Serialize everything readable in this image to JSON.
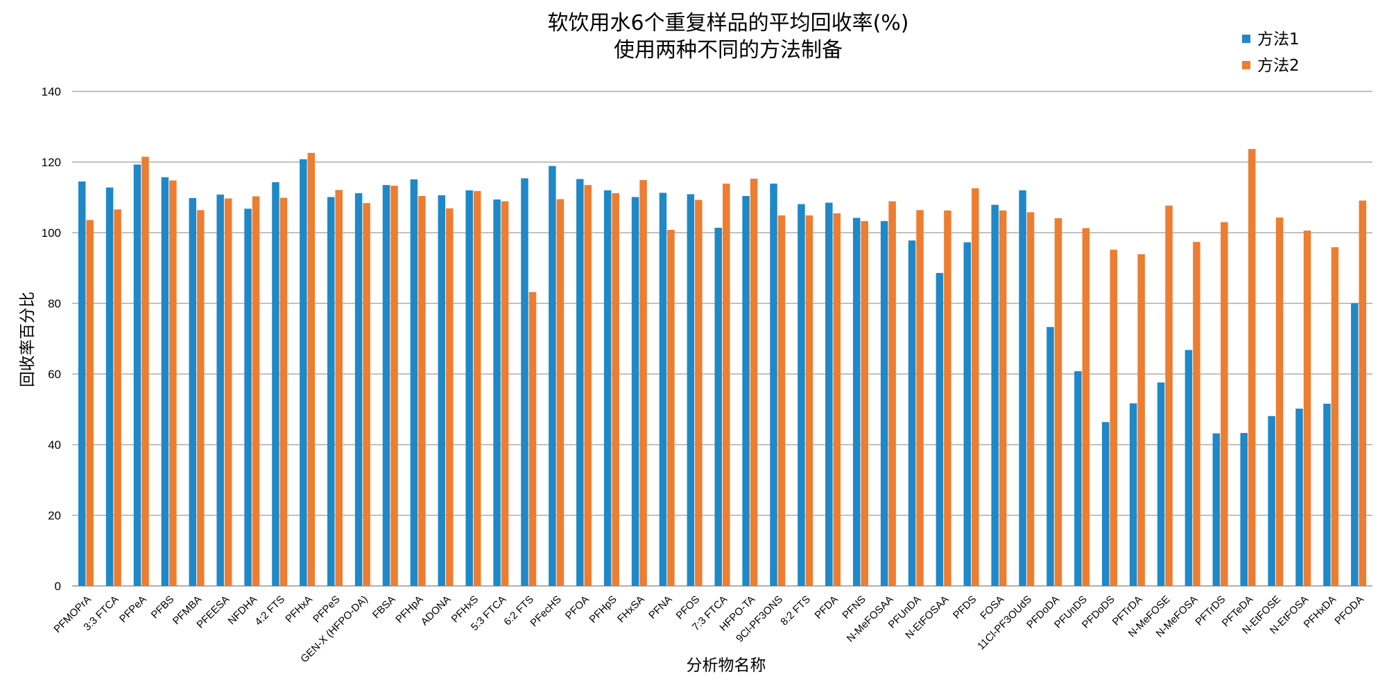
{
  "chart_data": {
    "type": "bar",
    "title": "软饮用水6个重复样品的平均回收率(%)",
    "subtitle": "使用两种不同的方法制备",
    "xlabel": "分析物名称",
    "ylabel": "回收率百分比",
    "ylim": [
      0,
      140
    ],
    "yticks": [
      0,
      20,
      40,
      60,
      80,
      100,
      120,
      140
    ],
    "grid": true,
    "legend_position": "top-right",
    "colors": {
      "方法1": "#1F88C7",
      "方法2": "#ED7D31"
    },
    "categories": [
      "PFMOPrA",
      "3:3 FTCA",
      "PFPeA",
      "PFBS",
      "PFMBA",
      "PFEESA",
      "NFDHA",
      "4:2 FTS",
      "PFHxA",
      "PFPeS",
      "GEN-X (HFPO-DA)",
      "FBSA",
      "PFHpA",
      "ADONA",
      "PFHxS",
      "5:3 FTCA",
      "6:2 FTS",
      "PFecHS",
      "PFOA",
      "PFHpS",
      "FHxSA",
      "PFNA",
      "PFOS",
      "7:3 FTCA",
      "HFPO-TA",
      "9Cl-PF3ONS",
      "8:2 FTS",
      "PFDA",
      "PFNS",
      "N-MeFOSAA",
      "PFUnDA",
      "N-EtFOSAA",
      "PFDS",
      "FOSA",
      "11Cl-PF3OUdS",
      "PFDoDA",
      "PFUnDS",
      "PFDoDS",
      "PFTrDA",
      "N-MeFOSE",
      "N-MeFOSA",
      "PFTrDS",
      "PFTeDA",
      "N-EtFOSE",
      "N-EtFOSA",
      "PFHxDA",
      "PFODA"
    ],
    "series": [
      {
        "name": "方法1",
        "values": [
          114.5,
          112.8,
          119.3,
          115.7,
          109.8,
          110.8,
          106.8,
          114.3,
          120.8,
          110.1,
          111.2,
          113.5,
          115.1,
          110.6,
          112.0,
          109.4,
          115.4,
          118.9,
          115.2,
          112.0,
          110.1,
          111.3,
          110.9,
          101.4,
          110.4,
          113.9,
          108.1,
          108.5,
          104.2,
          103.3,
          97.8,
          88.6,
          97.3,
          107.9,
          112.0,
          73.3,
          60.8,
          46.4,
          51.7,
          57.6,
          66.8,
          43.2,
          43.3,
          48.1,
          50.2,
          51.6,
          80.1
        ]
      },
      {
        "name": "方法2",
        "values": [
          103.6,
          106.6,
          121.5,
          114.8,
          106.4,
          109.7,
          110.3,
          109.9,
          122.6,
          112.1,
          108.4,
          113.3,
          110.4,
          106.9,
          111.8,
          108.9,
          83.2,
          109.5,
          113.5,
          111.2,
          114.9,
          100.8,
          109.3,
          113.9,
          115.3,
          104.9,
          104.9,
          105.5,
          103.3,
          108.9,
          106.4,
          106.3,
          112.6,
          106.3,
          105.8,
          104.1,
          101.3,
          95.2,
          93.9,
          107.7,
          97.4,
          103.0,
          123.7,
          104.3,
          100.6,
          95.9,
          109.1
        ]
      }
    ]
  }
}
